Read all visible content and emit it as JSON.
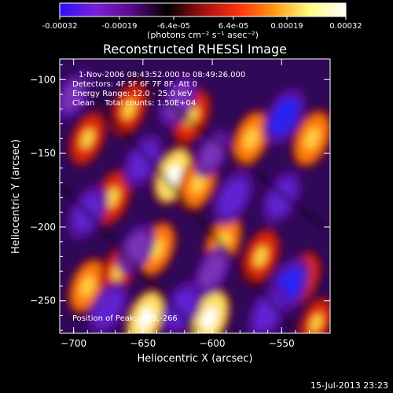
{
  "chart_data": {
    "type": "heatmap",
    "title": "Reconstructed RHESSI Image",
    "xlabel": "Heliocentric X (arcsec)",
    "ylabel": "Heliocentric Y (arcsec)",
    "xlim": [
      -710,
      -515
    ],
    "ylim": [
      -272,
      -86
    ],
    "x_ticks": [
      -700,
      -650,
      -600,
      -550
    ],
    "y_ticks": [
      -100,
      -150,
      -200,
      -250
    ],
    "annotations": [
      "1-Nov-2006 08:43:52.000 to 08:49:26.000",
      "Detectors: 4F 5F 6F 7F 8F, Att 0",
      "Energy Range: 12.0 - 25.0 keV",
      "Clean    Total counts: 1.50E+04"
    ],
    "peak_label": "Position of Peak: -598,-266",
    "colorbar": {
      "range": [
        -0.00032,
        0.00032
      ],
      "tick_labels": [
        "-0.00032",
        "-0.00019",
        "-6.4e-05",
        "6.4e-05",
        "0.00019",
        "0.00032"
      ],
      "unit_label": "(photons cm⁻² s⁻¹ asec⁻²)",
      "colors": [
        "#2a10ff",
        "#7a20d8",
        "#5a0a8a",
        "#000000",
        "#a01010",
        "#ff3010",
        "#ff9a10",
        "#ffff80",
        "#ffffff"
      ]
    },
    "features": [
      {
        "x": -602,
        "y": -262,
        "sign": 1,
        "strength": 1.0
      },
      {
        "x": -648,
        "y": -262,
        "sign": 1,
        "strength": 0.9
      },
      {
        "x": -690,
        "y": -240,
        "sign": 1,
        "strength": 0.75
      },
      {
        "x": -640,
        "y": -215,
        "sign": 1,
        "strength": 0.75
      },
      {
        "x": -592,
        "y": -210,
        "sign": 1,
        "strength": 0.75
      },
      {
        "x": -565,
        "y": -220,
        "sign": 1,
        "strength": 0.7
      },
      {
        "x": -672,
        "y": -180,
        "sign": 1,
        "strength": 0.7
      },
      {
        "x": -628,
        "y": -165,
        "sign": 1,
        "strength": 0.9
      },
      {
        "x": -615,
        "y": -125,
        "sign": 1,
        "strength": 0.7
      },
      {
        "x": -572,
        "y": -140,
        "sign": 1,
        "strength": 0.8
      },
      {
        "x": -528,
        "y": -140,
        "sign": 1,
        "strength": 0.85
      },
      {
        "x": -690,
        "y": -140,
        "sign": 1,
        "strength": 0.6
      },
      {
        "x": -535,
        "y": -235,
        "sign": 1,
        "strength": 0.6
      },
      {
        "x": -660,
        "y": -120,
        "sign": 1,
        "strength": 0.6
      },
      {
        "x": -610,
        "y": -170,
        "sign": 1,
        "strength": 0.8
      },
      {
        "x": -525,
        "y": -265,
        "sign": 1,
        "strength": 0.45
      },
      {
        "x": -668,
        "y": -230,
        "sign": 1,
        "strength": 0.5
      },
      {
        "x": -548,
        "y": -125,
        "sign": -1,
        "strength": 1.0
      },
      {
        "x": -545,
        "y": -240,
        "sign": -1,
        "strength": 1.0
      },
      {
        "x": -622,
        "y": -255,
        "sign": -1,
        "strength": 0.85
      },
      {
        "x": -560,
        "y": -258,
        "sign": -1,
        "strength": 0.8
      },
      {
        "x": -585,
        "y": -180,
        "sign": -1,
        "strength": 0.85
      },
      {
        "x": -550,
        "y": -180,
        "sign": -1,
        "strength": 0.75
      },
      {
        "x": -650,
        "y": -155,
        "sign": -1,
        "strength": 0.8
      },
      {
        "x": -690,
        "y": -190,
        "sign": -1,
        "strength": 0.85
      },
      {
        "x": -675,
        "y": -255,
        "sign": -1,
        "strength": 0.8
      },
      {
        "x": -625,
        "y": -115,
        "sign": -1,
        "strength": 0.7
      },
      {
        "x": -655,
        "y": -215,
        "sign": -1,
        "strength": 0.65
      },
      {
        "x": -600,
        "y": -230,
        "sign": -1,
        "strength": 0.6
      },
      {
        "x": -700,
        "y": -110,
        "sign": -1,
        "strength": 0.6
      },
      {
        "x": -600,
        "y": -150,
        "sign": -1,
        "strength": 0.5
      }
    ]
  },
  "footer": {
    "timestamp": "15-Jul-2013 23:23"
  }
}
